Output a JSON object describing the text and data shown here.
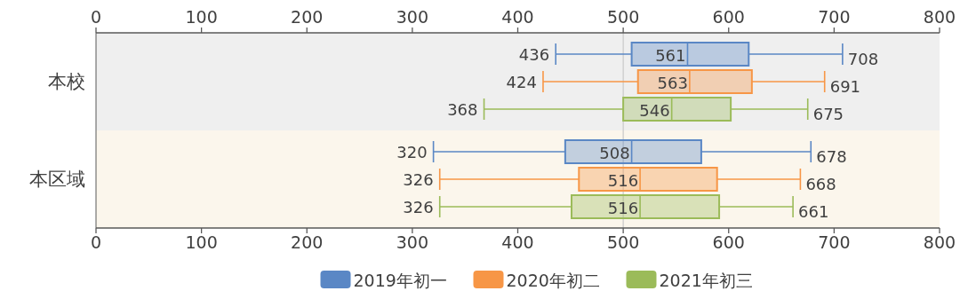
{
  "chart_data": {
    "type": "box",
    "orientation": "horizontal",
    "categories": [
      "本校",
      "本区域"
    ],
    "series": [
      {
        "name": "2019年初一",
        "color": "#5a87c5",
        "boxes": [
          {
            "low": 436,
            "q1": 508,
            "median": 561,
            "q3": 619,
            "high": 708
          },
          {
            "low": 320,
            "q1": 445,
            "median": 508,
            "q3": 574,
            "high": 678
          }
        ],
        "value_labels": [
          [
            "436",
            "561",
            "708"
          ],
          [
            "320",
            "508",
            "678"
          ]
        ]
      },
      {
        "name": "2020年初二",
        "color": "#f79646",
        "boxes": [
          {
            "low": 424,
            "q1": 514,
            "median": 563,
            "q3": 622,
            "high": 691
          },
          {
            "low": 326,
            "q1": 458,
            "median": 516,
            "q3": 589,
            "high": 668
          }
        ],
        "value_labels": [
          [
            "424",
            "563",
            "691"
          ],
          [
            "326",
            "516",
            "668"
          ]
        ]
      },
      {
        "name": "2021年初三",
        "color": "#9bbb59",
        "boxes": [
          {
            "low": 368,
            "q1": 500,
            "median": 546,
            "q3": 602,
            "high": 675
          },
          {
            "low": 326,
            "q1": 451,
            "median": 516,
            "q3": 591,
            "high": 661
          }
        ],
        "value_labels": [
          [
            "368",
            "546",
            "675"
          ],
          [
            "326",
            "516",
            "661"
          ]
        ]
      }
    ],
    "xlim": [
      0,
      800
    ],
    "xticks": [
      0,
      100,
      200,
      300,
      400,
      500,
      600,
      700,
      800
    ],
    "x2lim": [
      0,
      800
    ],
    "x2ticks": [
      0,
      100,
      200,
      300,
      400,
      500,
      600,
      700,
      800
    ],
    "ref_lines": [
      {
        "axis": "x",
        "value": 500,
        "color": "#c8c8c8"
      }
    ],
    "bands": [
      {
        "axis": "y",
        "from": "本校",
        "to": "本校",
        "color": "#efefef"
      },
      {
        "axis": "y",
        "from": "本区域",
        "to": "本区域",
        "color": "#fbf6ec"
      }
    ],
    "legend": "bottom",
    "grid": false
  }
}
